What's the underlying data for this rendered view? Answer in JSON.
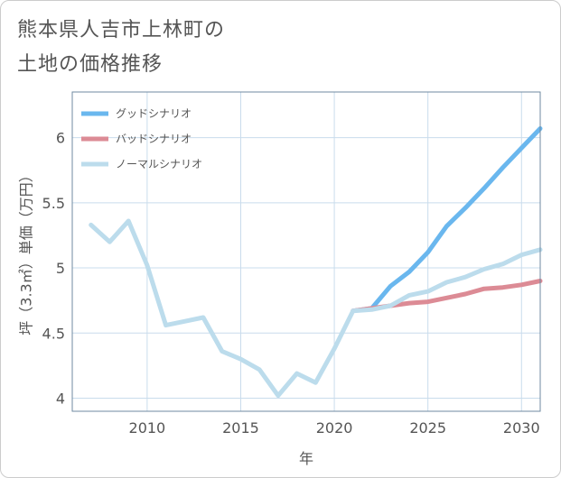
{
  "title_lines": [
    "熊本県人吉市上林町の",
    "土地の価格推移"
  ],
  "colors": {
    "good": "#6ab7ee",
    "bad": "#dc8b95",
    "normal": "#bcdcec",
    "grid": "#c9dcec",
    "frame": "#6f8aa0"
  },
  "chart_data": {
    "type": "line",
    "xlabel": "年",
    "ylabel": "坪（3.3㎡）単価（万円）",
    "xlim": [
      2006,
      2031
    ],
    "ylim": [
      3.9,
      6.35
    ],
    "xticks": [
      2010,
      2015,
      2020,
      2025,
      2030
    ],
    "yticks": [
      4,
      4.5,
      5,
      5.5,
      6
    ],
    "xtick_labels": [
      "2010",
      "2015",
      "2020",
      "2025",
      "2030"
    ],
    "ytick_labels": [
      "4",
      "4.5",
      "5",
      "5.5",
      "6"
    ],
    "legend_position": "top-left",
    "series": [
      {
        "name": "グッドシナリオ",
        "key": "good",
        "x": [
          2021,
          2022,
          2023,
          2024,
          2025,
          2026,
          2027,
          2028,
          2029,
          2030,
          2031
        ],
        "values": [
          4.67,
          4.69,
          4.86,
          4.97,
          5.12,
          5.32,
          5.46,
          5.61,
          5.77,
          5.92,
          6.07
        ]
      },
      {
        "name": "バッドシナリオ",
        "key": "bad",
        "x": [
          2021,
          2022,
          2023,
          2024,
          2025,
          2026,
          2027,
          2028,
          2029,
          2030,
          2031
        ],
        "values": [
          4.67,
          4.69,
          4.71,
          4.73,
          4.74,
          4.77,
          4.8,
          4.84,
          4.85,
          4.87,
          4.9
        ]
      },
      {
        "name": "ノーマルシナリオ",
        "key": "normal",
        "x": [
          2007,
          2008,
          2009,
          2010,
          2011,
          2012,
          2013,
          2014,
          2015,
          2016,
          2017,
          2018,
          2019,
          2020,
          2021,
          2022,
          2023,
          2024,
          2025,
          2026,
          2027,
          2028,
          2029,
          2030,
          2031
        ],
        "values": [
          5.33,
          5.2,
          5.36,
          5.02,
          4.56,
          4.59,
          4.62,
          4.36,
          4.3,
          4.22,
          4.02,
          4.19,
          4.12,
          4.38,
          4.67,
          4.68,
          4.71,
          4.79,
          4.82,
          4.89,
          4.93,
          4.99,
          5.03,
          5.1,
          5.14
        ]
      }
    ]
  }
}
